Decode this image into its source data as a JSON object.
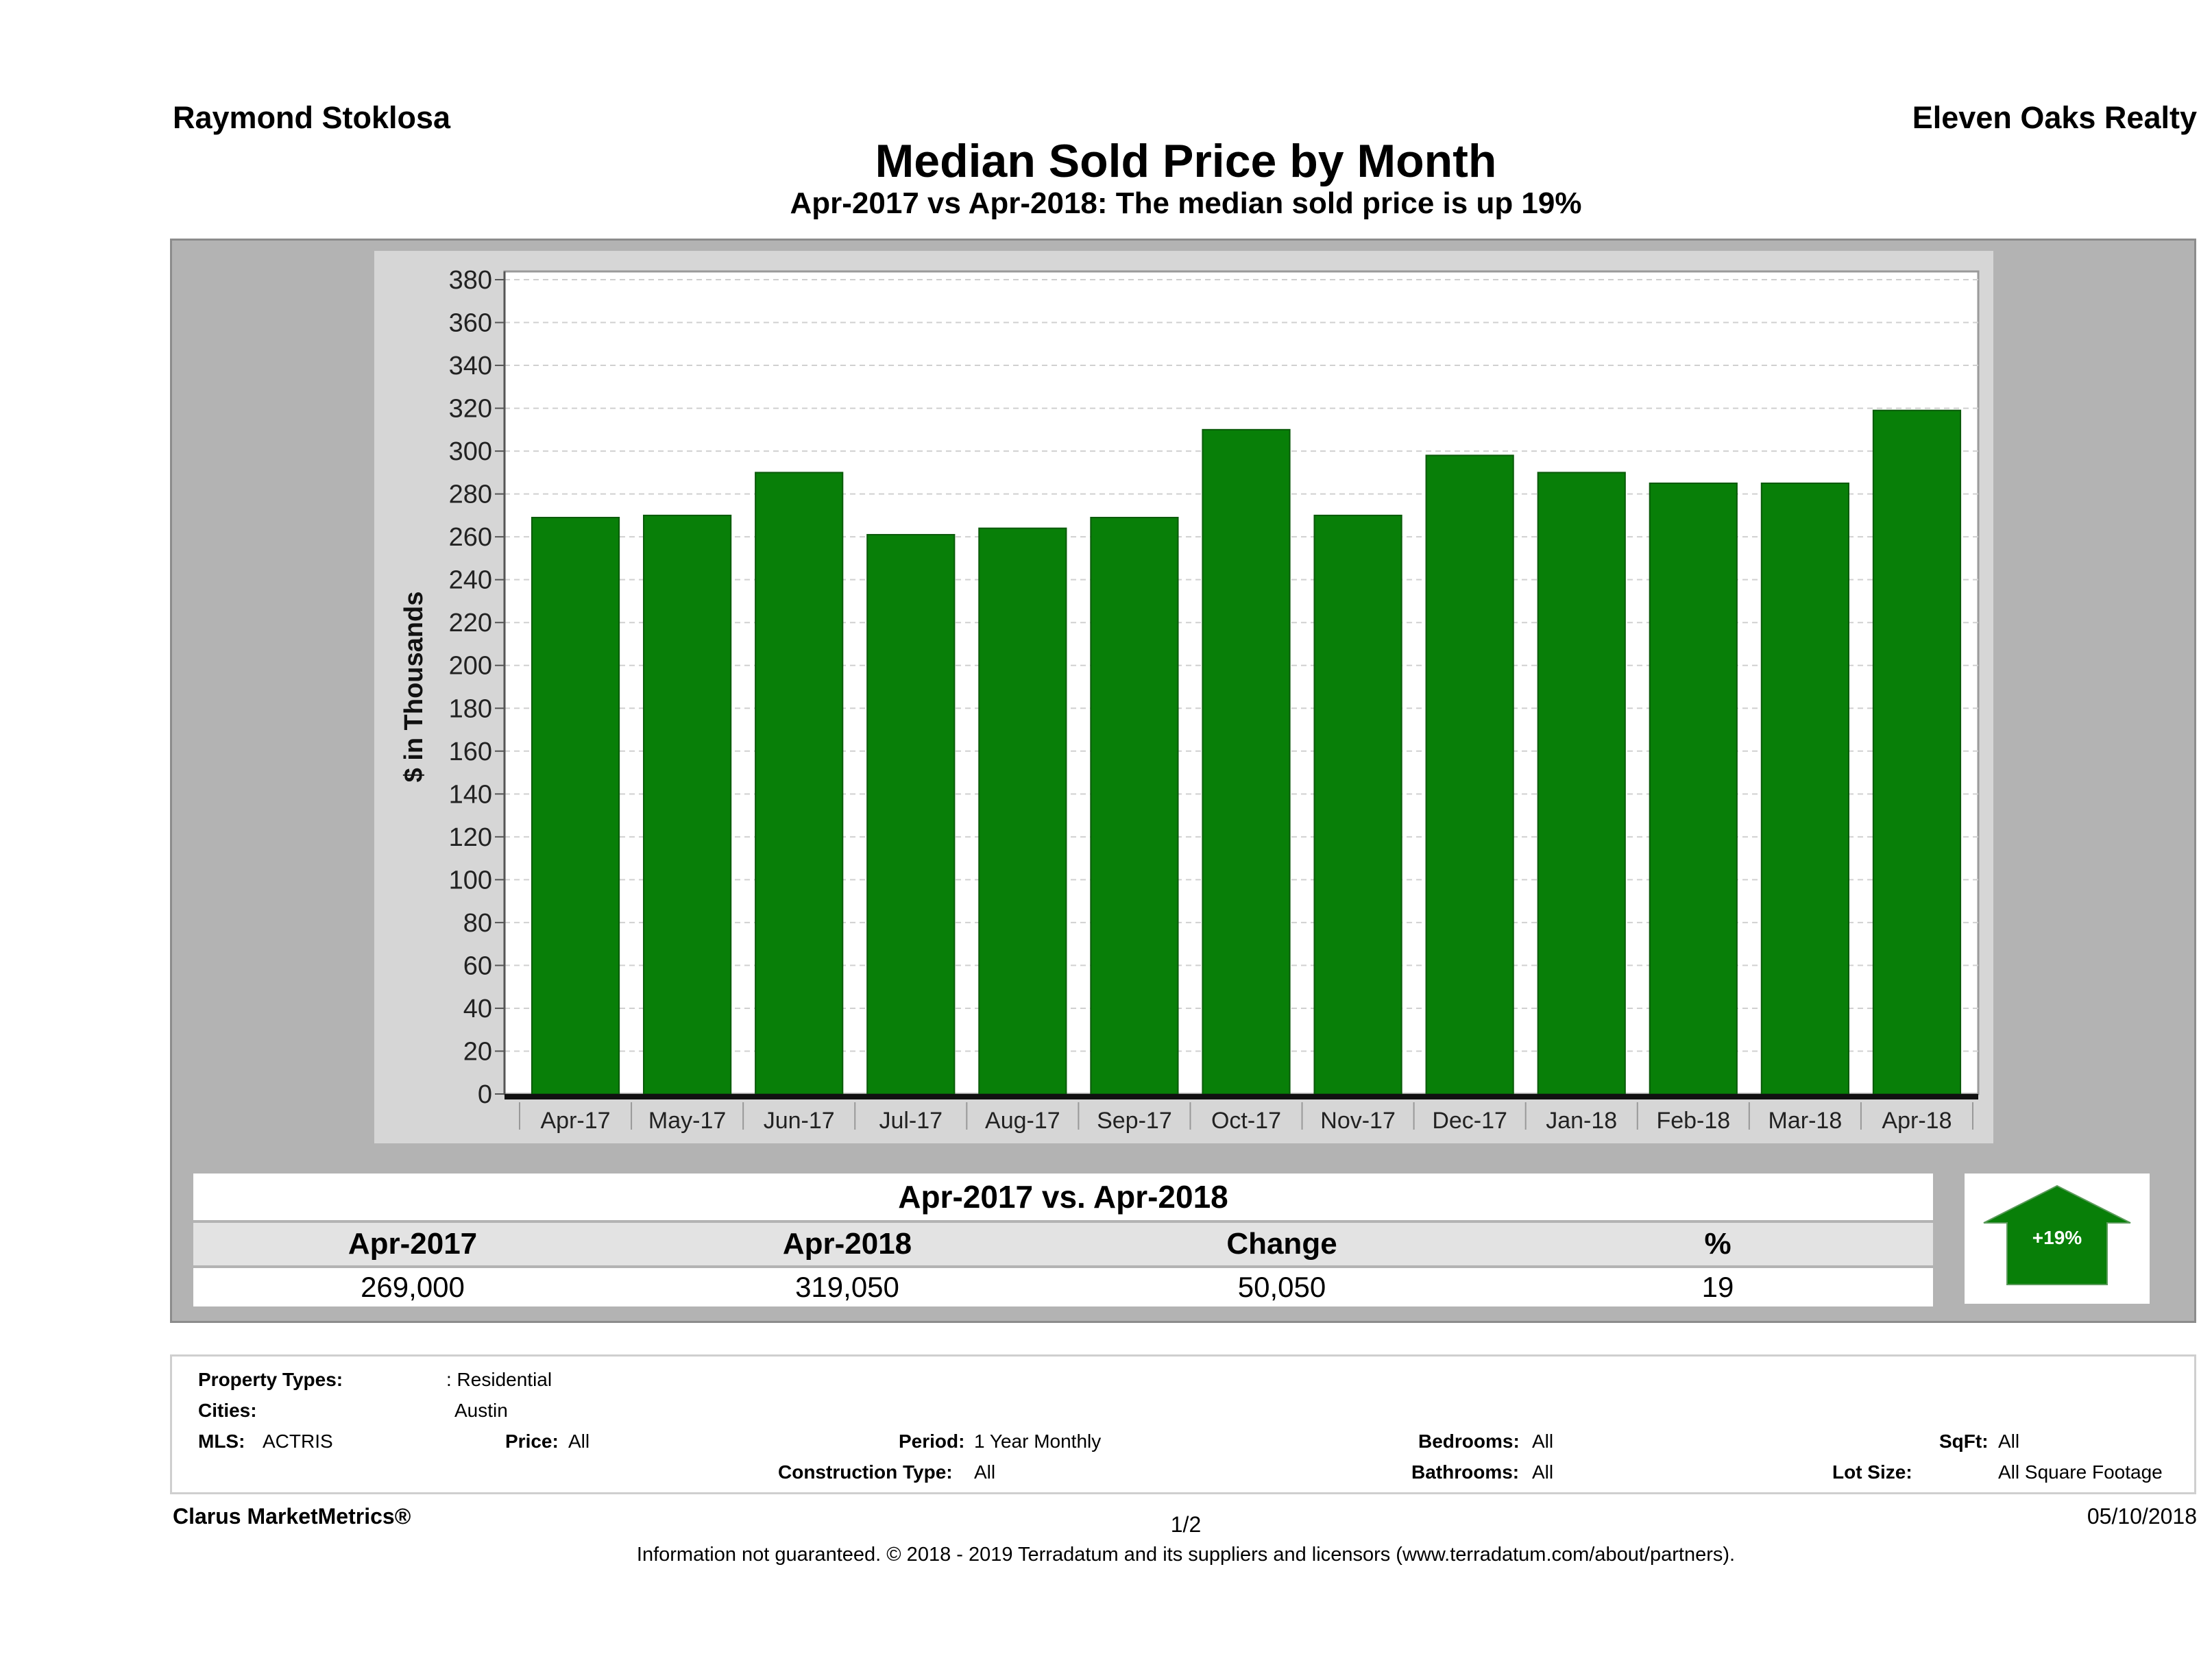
{
  "header": {
    "agent": "Raymond Stoklosa",
    "broker": "Eleven Oaks Realty",
    "title": "Median Sold Price by Month",
    "subtitle": "Apr-2017 vs Apr-2018: The median sold price is up 19%"
  },
  "chart_data": {
    "type": "bar",
    "ylabel": "$ in Thousands",
    "ylim": [
      0,
      380
    ],
    "ytick_step": 20,
    "grid": true,
    "bar_color": "#087f08",
    "categories": [
      "Apr-17",
      "May-17",
      "Jun-17",
      "Jul-17",
      "Aug-17",
      "Sep-17",
      "Oct-17",
      "Nov-17",
      "Dec-17",
      "Jan-18",
      "Feb-18",
      "Mar-18",
      "Apr-18"
    ],
    "values": [
      269,
      270,
      290,
      261,
      264,
      269,
      310,
      270,
      298,
      290,
      285,
      285,
      319
    ]
  },
  "summary": {
    "title": "Apr-2017 vs. Apr-2018",
    "headers": [
      "Apr-2017",
      "Apr-2018",
      "Change",
      "%"
    ],
    "values": [
      "269,000",
      "319,050",
      "50,050",
      "19"
    ],
    "badge": "+19%",
    "badge_color": "#087f08"
  },
  "filters": {
    "property_types_label": "Property Types:",
    "property_types_value": ": Residential",
    "cities_label": "Cities:",
    "cities_value": "Austin",
    "mls_label": "MLS:",
    "mls_value": "ACTRIS",
    "price_label": "Price:",
    "price_value": "All",
    "period_label": "Period:",
    "period_value": "1 Year Monthly",
    "construction_label": "Construction Type:",
    "construction_value": "All",
    "bedrooms_label": "Bedrooms:",
    "bedrooms_value": "All",
    "bathrooms_label": "Bathrooms:",
    "bathrooms_value": "All",
    "sqft_label": "SqFt:",
    "sqft_value": "All",
    "lotsize_label": "Lot Size:",
    "lotsize_value": "All Square Footage"
  },
  "footer": {
    "brand": "Clarus MarketMetrics®",
    "page": "1/2",
    "date": "05/10/2018",
    "disclaimer": "Information not guaranteed. © 2018 - 2019 Terradatum and its suppliers and licensors (www.terradatum.com/about/partners)."
  }
}
